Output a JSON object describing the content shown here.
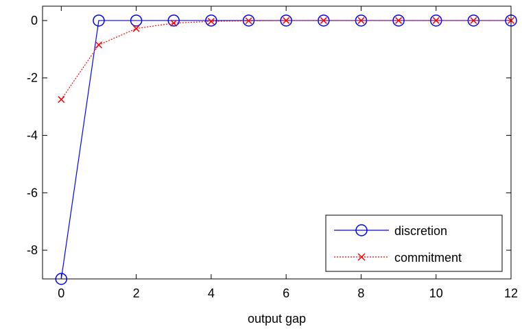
{
  "chart_data": {
    "type": "line",
    "xlabel": "output gap",
    "ylabel": "",
    "title": "",
    "xlim": [
      -0.5,
      12
    ],
    "ylim": [
      -9,
      0.5
    ],
    "xticks": [
      0,
      2,
      4,
      6,
      8,
      10,
      12
    ],
    "yticks": [
      0,
      -2,
      -4,
      -6,
      -8
    ],
    "grid": false,
    "legend_position": "bottom-right",
    "x": [
      0,
      1,
      2,
      3,
      4,
      5,
      6,
      7,
      8,
      9,
      10,
      11,
      12
    ],
    "series": [
      {
        "name": "discretion",
        "color": "#0000ff",
        "line_style": "solid",
        "marker": "circle",
        "values": [
          -9,
          0,
          0,
          0,
          0,
          0,
          0,
          0,
          0,
          0,
          0,
          0,
          0
        ]
      },
      {
        "name": "commitment",
        "color": "#ff0000",
        "line_style": "dotted",
        "marker": "x",
        "values": [
          -2.75,
          -0.85,
          -0.28,
          -0.09,
          -0.03,
          -0.01,
          0,
          0,
          0,
          0,
          0,
          0,
          0
        ]
      }
    ]
  }
}
